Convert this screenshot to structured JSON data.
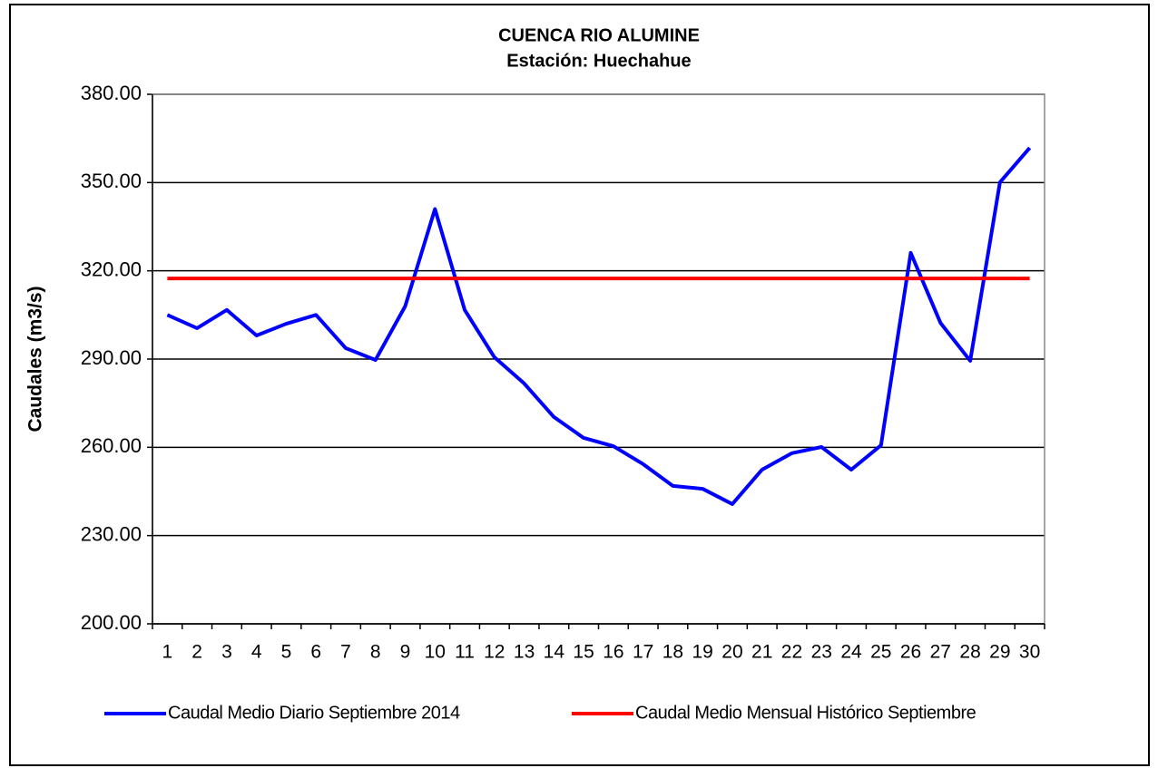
{
  "chart_data": {
    "type": "line",
    "title": "CUENCA RIO ALUMINE",
    "subtitle": "Estación: Huechahue",
    "y_label": "Caudales (m3/s)",
    "categories": [
      "1",
      "2",
      "3",
      "4",
      "5",
      "6",
      "7",
      "8",
      "9",
      "10",
      "11",
      "12",
      "13",
      "14",
      "15",
      "16",
      "17",
      "18",
      "19",
      "20",
      "21",
      "22",
      "23",
      "24",
      "25",
      "26",
      "27",
      "28",
      "29",
      "30"
    ],
    "series": [
      {
        "name": "Caudal Medio Diario Septiembre 2014",
        "color": "#0000ff",
        "values": [
          305,
          300.5,
          306.7,
          298,
          302,
          305,
          293.7,
          289.7,
          308,
          341,
          306.7,
          290.6,
          281.7,
          270.3,
          263.2,
          260.4,
          254.3,
          246.9,
          245.9,
          240.7,
          252.4,
          258,
          260.1,
          252.4,
          260.7,
          326.1,
          302.3,
          289.4,
          350.1,
          361.8
        ]
      },
      {
        "name": "Caudal Medio Mensual Histórico Septiembre",
        "color": "#ff0000",
        "values": [
          317.4,
          317.4,
          317.4,
          317.4,
          317.4,
          317.4,
          317.4,
          317.4,
          317.4,
          317.4,
          317.4,
          317.4,
          317.4,
          317.4,
          317.4,
          317.4,
          317.4,
          317.4,
          317.4,
          317.4,
          317.4,
          317.4,
          317.4,
          317.4,
          317.4,
          317.4,
          317.4,
          317.4,
          317.4,
          317.4
        ]
      }
    ],
    "ylim": [
      200,
      380
    ],
    "yticks": [
      {
        "value": 200,
        "label": "200.00"
      },
      {
        "value": 230,
        "label": "230.00"
      },
      {
        "value": 260,
        "label": "260.00"
      },
      {
        "value": 290,
        "label": "290.00"
      },
      {
        "value": 320,
        "label": "320.00"
      },
      {
        "value": 350,
        "label": "350.00"
      },
      {
        "value": 380,
        "label": "380.00"
      }
    ],
    "grid": true,
    "legend": "bottom"
  }
}
